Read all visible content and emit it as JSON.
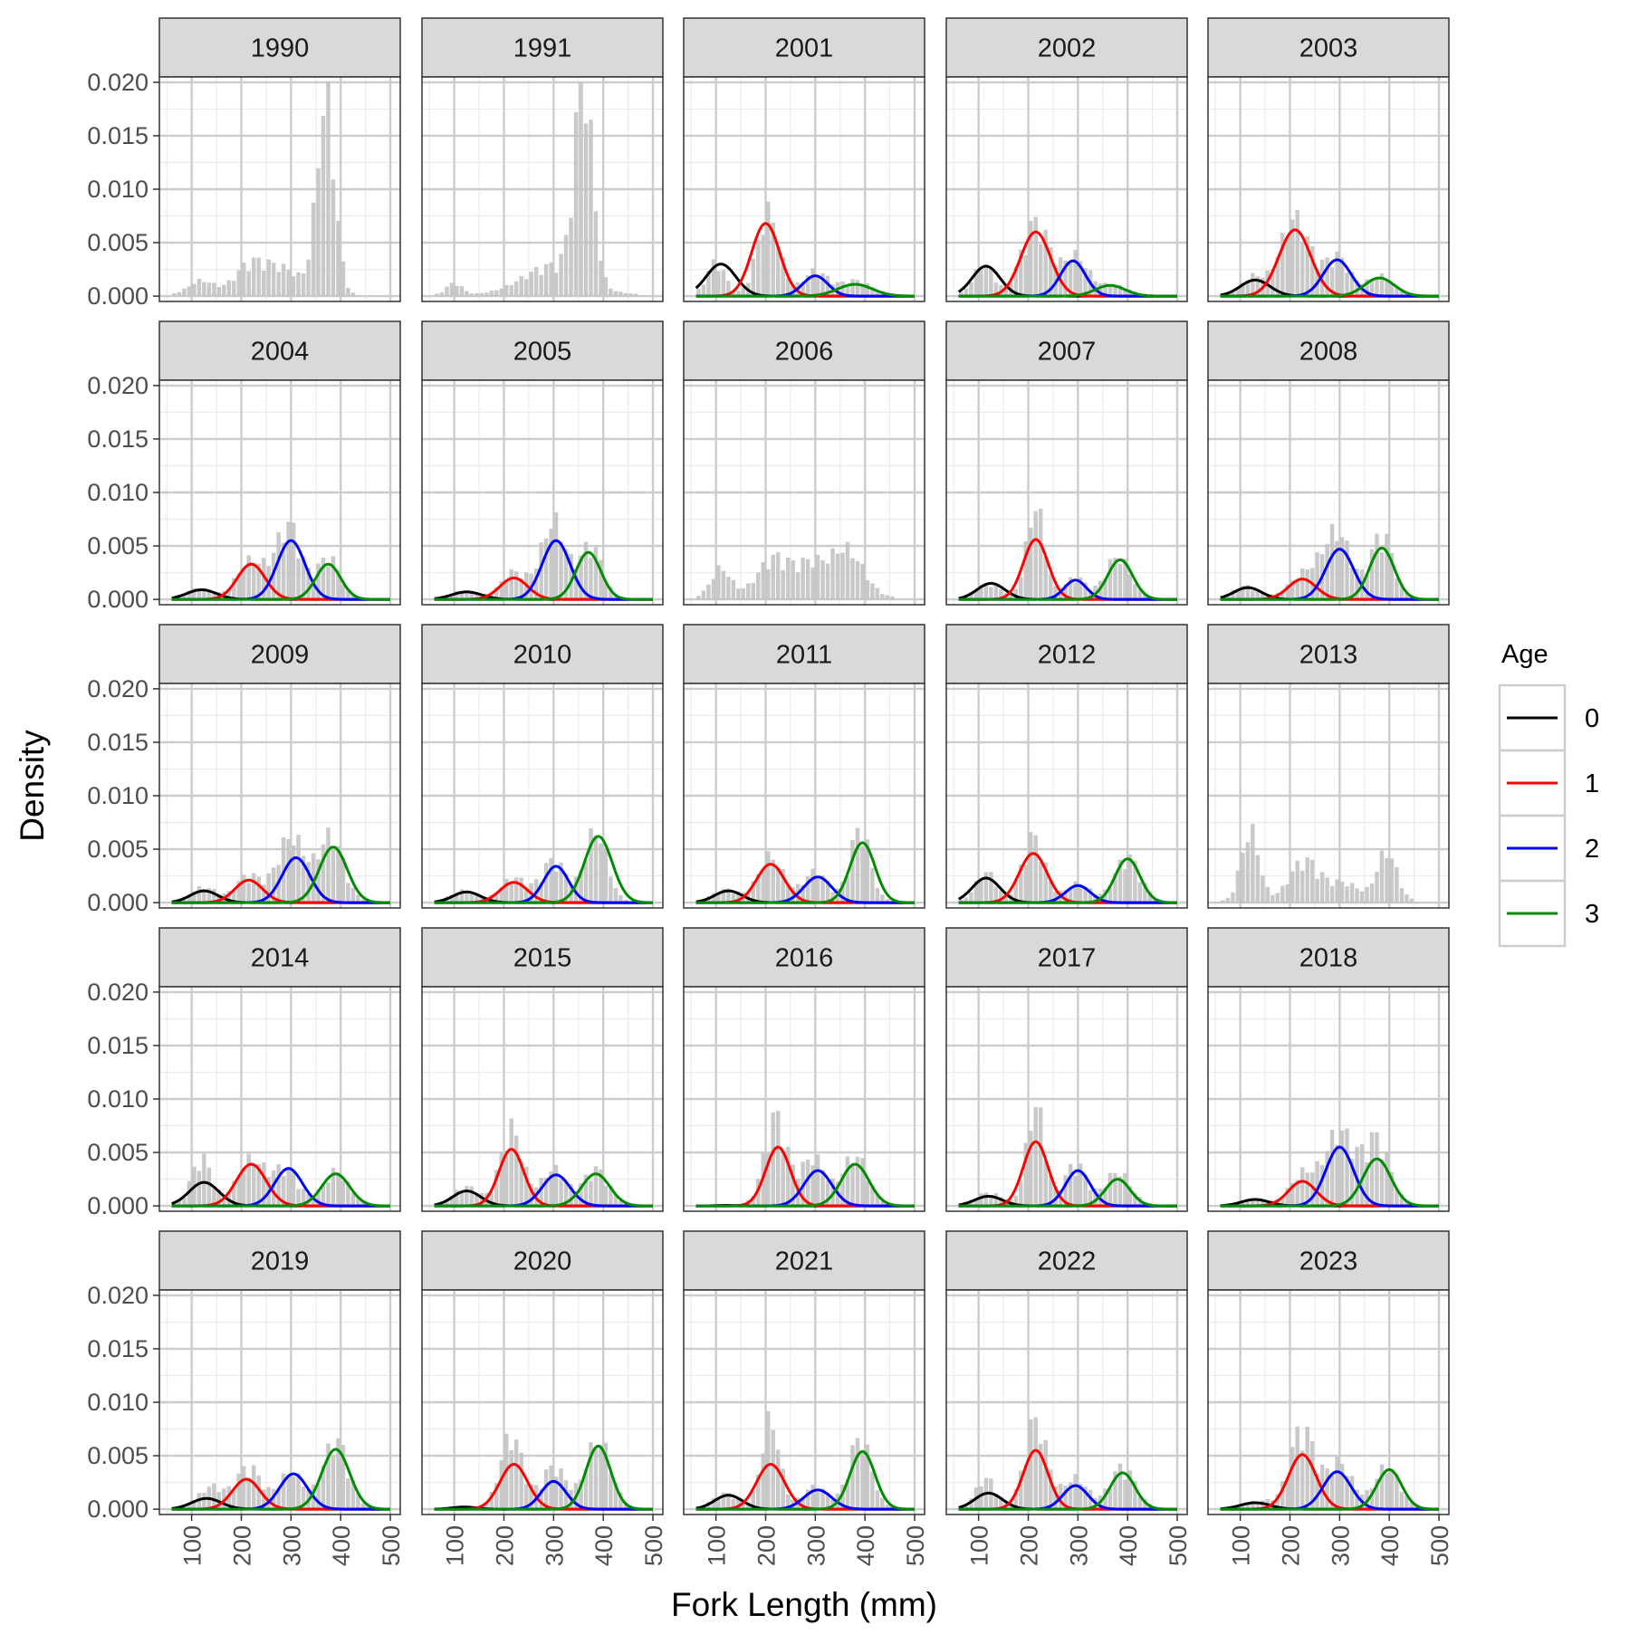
{
  "chart_data": {
    "type": "histogram-with-density-curves",
    "xlabel": "Fork Length (mm)",
    "ylabel": "Density",
    "x_ticks": [
      100,
      200,
      300,
      400,
      500
    ],
    "x_tick_labels": [
      "100",
      "200",
      "300",
      "400",
      "500"
    ],
    "y_ticks": [
      0,
      0.005,
      0.01,
      0.015,
      0.02
    ],
    "y_tick_labels": [
      "0.000",
      "0.005",
      "0.010",
      "0.015",
      "0.020"
    ],
    "xlim": [
      35,
      520
    ],
    "ylim": [
      -0.0005,
      0.0205
    ],
    "legend": {
      "title": "Age",
      "position": "right",
      "entries": [
        {
          "label": "0",
          "color": "#000000"
        },
        {
          "label": "1",
          "color": "#ff0000"
        },
        {
          "label": "2",
          "color": "#0000ff"
        },
        {
          "label": "3",
          "color": "#008b00"
        }
      ]
    },
    "bar_color": "#bfbfbf",
    "facet_strip_color": "#d9d9d9",
    "panels": [
      {
        "label": "1990",
        "hist_peaks": [
          [
            370,
            0.0165,
            18
          ],
          [
            120,
            0.0012,
            25
          ],
          [
            215,
            0.0022,
            30
          ],
          [
            280,
            0.0022,
            40
          ]
        ],
        "curves": []
      },
      {
        "label": "1991",
        "hist_peaks": [
          [
            360,
            0.017,
            18
          ],
          [
            100,
            0.001,
            15
          ],
          [
            300,
            0.0025,
            60
          ]
        ],
        "curves": []
      },
      {
        "label": "2001",
        "hist_peaks": [
          [
            100,
            0.0028,
            18
          ],
          [
            205,
            0.007,
            22
          ],
          [
            300,
            0.002,
            25
          ],
          [
            380,
            0.0012,
            30
          ]
        ],
        "curves": [
          [
            0.003,
            110,
            30
          ],
          [
            0.0068,
            200,
            28
          ],
          [
            0.0019,
            300,
            25
          ],
          [
            0.0011,
            380,
            35
          ]
        ]
      },
      {
        "label": "2002",
        "hist_peaks": [
          [
            110,
            0.0025,
            20
          ],
          [
            215,
            0.0062,
            28
          ],
          [
            295,
            0.0032,
            25
          ],
          [
            370,
            0.0008,
            30
          ]
        ],
        "curves": [
          [
            0.0028,
            115,
            28
          ],
          [
            0.006,
            215,
            30
          ],
          [
            0.0033,
            290,
            25
          ],
          [
            0.001,
            365,
            30
          ]
        ]
      },
      {
        "label": "2003",
        "hist_peaks": [
          [
            125,
            0.0015,
            22
          ],
          [
            210,
            0.0065,
            30
          ],
          [
            295,
            0.0032,
            25
          ],
          [
            380,
            0.0016,
            25
          ]
        ],
        "curves": [
          [
            0.0015,
            130,
            30
          ],
          [
            0.0062,
            210,
            32
          ],
          [
            0.0034,
            295,
            28
          ],
          [
            0.0017,
            380,
            30
          ]
        ]
      },
      {
        "label": "2004",
        "hist_peaks": [
          [
            115,
            0.0008,
            25
          ],
          [
            220,
            0.0032,
            28
          ],
          [
            295,
            0.0062,
            25
          ],
          [
            375,
            0.0035,
            22
          ]
        ],
        "curves": [
          [
            0.0009,
            120,
            30
          ],
          [
            0.0033,
            220,
            28
          ],
          [
            0.0055,
            300,
            28
          ],
          [
            0.0033,
            375,
            25
          ]
        ]
      },
      {
        "label": "2005",
        "hist_peaks": [
          [
            120,
            0.0006,
            25
          ],
          [
            220,
            0.0022,
            25
          ],
          [
            300,
            0.0065,
            25
          ],
          [
            375,
            0.0045,
            22
          ]
        ],
        "curves": [
          [
            0.0007,
            125,
            30
          ],
          [
            0.002,
            220,
            28
          ],
          [
            0.0055,
            305,
            28
          ],
          [
            0.0044,
            370,
            25
          ]
        ]
      },
      {
        "label": "2006",
        "hist_peaks": [
          [
            110,
            0.0025,
            20
          ],
          [
            220,
            0.0035,
            35
          ],
          [
            290,
            0.0022,
            25
          ],
          [
            360,
            0.0042,
            35
          ]
        ],
        "curves": []
      },
      {
        "label": "2007",
        "hist_peaks": [
          [
            120,
            0.0012,
            25
          ],
          [
            215,
            0.0078,
            18
          ],
          [
            295,
            0.0018,
            20
          ],
          [
            380,
            0.0035,
            25
          ]
        ],
        "curves": [
          [
            0.0015,
            125,
            28
          ],
          [
            0.0056,
            215,
            25
          ],
          [
            0.0018,
            295,
            22
          ],
          [
            0.0037,
            385,
            25
          ]
        ]
      },
      {
        "label": "2008",
        "hist_peaks": [
          [
            110,
            0.001,
            25
          ],
          [
            230,
            0.002,
            30
          ],
          [
            295,
            0.0055,
            28
          ],
          [
            385,
            0.0055,
            22
          ]
        ],
        "curves": [
          [
            0.0011,
            115,
            28
          ],
          [
            0.0019,
            225,
            28
          ],
          [
            0.0047,
            300,
            28
          ],
          [
            0.0048,
            385,
            25
          ]
        ]
      },
      {
        "label": "2009",
        "hist_peaks": [
          [
            125,
            0.0012,
            25
          ],
          [
            215,
            0.0022,
            25
          ],
          [
            300,
            0.0055,
            28
          ],
          [
            380,
            0.0055,
            25
          ]
        ],
        "curves": [
          [
            0.0011,
            125,
            28
          ],
          [
            0.0021,
            215,
            28
          ],
          [
            0.0042,
            310,
            28
          ],
          [
            0.0052,
            385,
            28
          ]
        ]
      },
      {
        "label": "2010",
        "hist_peaks": [
          [
            120,
            0.0009,
            25
          ],
          [
            220,
            0.002,
            25
          ],
          [
            300,
            0.0035,
            25
          ],
          [
            385,
            0.006,
            22
          ]
        ],
        "curves": [
          [
            0.001,
            125,
            28
          ],
          [
            0.0019,
            220,
            28
          ],
          [
            0.0034,
            305,
            25
          ],
          [
            0.0062,
            390,
            28
          ]
        ]
      },
      {
        "label": "2011",
        "hist_peaks": [
          [
            120,
            0.001,
            25
          ],
          [
            210,
            0.0038,
            25
          ],
          [
            300,
            0.0025,
            25
          ],
          [
            390,
            0.0062,
            20
          ]
        ],
        "curves": [
          [
            0.0011,
            125,
            28
          ],
          [
            0.0036,
            210,
            28
          ],
          [
            0.0024,
            305,
            28
          ],
          [
            0.0056,
            395,
            25
          ]
        ]
      },
      {
        "label": "2012",
        "hist_peaks": [
          [
            115,
            0.0025,
            20
          ],
          [
            210,
            0.0055,
            22
          ],
          [
            300,
            0.0015,
            25
          ],
          [
            400,
            0.0038,
            25
          ]
        ],
        "curves": [
          [
            0.0023,
            115,
            28
          ],
          [
            0.0046,
            210,
            28
          ],
          [
            0.0016,
            300,
            25
          ],
          [
            0.0041,
            400,
            25
          ]
        ]
      },
      {
        "label": "2013",
        "hist_peaks": [
          [
            120,
            0.006,
            18
          ],
          [
            230,
            0.0035,
            30
          ],
          [
            310,
            0.0015,
            30
          ],
          [
            395,
            0.0042,
            20
          ]
        ],
        "curves": []
      },
      {
        "label": "2014",
        "hist_peaks": [
          [
            120,
            0.004,
            20
          ],
          [
            220,
            0.0038,
            28
          ],
          [
            290,
            0.003,
            25
          ],
          [
            390,
            0.0028,
            25
          ]
        ],
        "curves": [
          [
            0.0022,
            125,
            30
          ],
          [
            0.0039,
            220,
            30
          ],
          [
            0.0035,
            295,
            28
          ],
          [
            0.003,
            390,
            28
          ]
        ]
      },
      {
        "label": "2015",
        "hist_peaks": [
          [
            125,
            0.0015,
            25
          ],
          [
            215,
            0.0065,
            22
          ],
          [
            300,
            0.003,
            25
          ],
          [
            385,
            0.003,
            25
          ]
        ],
        "curves": [
          [
            0.0014,
            125,
            28
          ],
          [
            0.0053,
            215,
            25
          ],
          [
            0.0029,
            305,
            28
          ],
          [
            0.003,
            385,
            28
          ]
        ]
      },
      {
        "label": "2016",
        "hist_peaks": [
          [
            220,
            0.0075,
            22
          ],
          [
            295,
            0.004,
            25
          ],
          [
            380,
            0.0042,
            25
          ]
        ],
        "curves": [
          [
            5e-05,
            120,
            20
          ],
          [
            0.0055,
            225,
            25
          ],
          [
            0.0033,
            305,
            28
          ],
          [
            0.0039,
            380,
            28
          ]
        ]
      },
      {
        "label": "2017",
        "hist_peaks": [
          [
            120,
            0.001,
            25
          ],
          [
            215,
            0.0085,
            18
          ],
          [
            295,
            0.0035,
            22
          ],
          [
            380,
            0.0028,
            25
          ]
        ],
        "curves": [
          [
            0.0009,
            120,
            28
          ],
          [
            0.006,
            215,
            25
          ],
          [
            0.0033,
            300,
            25
          ],
          [
            0.0025,
            380,
            25
          ]
        ]
      },
      {
        "label": "2018",
        "hist_peaks": [
          [
            130,
            0.0005,
            25
          ],
          [
            225,
            0.0025,
            25
          ],
          [
            300,
            0.0062,
            30
          ],
          [
            375,
            0.0055,
            25
          ]
        ],
        "curves": [
          [
            0.0006,
            130,
            28
          ],
          [
            0.0023,
            225,
            28
          ],
          [
            0.0055,
            300,
            28
          ],
          [
            0.0044,
            375,
            28
          ]
        ]
      },
      {
        "label": "2019",
        "hist_peaks": [
          [
            140,
            0.0018,
            25
          ],
          [
            215,
            0.0035,
            25
          ],
          [
            300,
            0.003,
            25
          ],
          [
            390,
            0.0058,
            25
          ]
        ],
        "curves": [
          [
            0.001,
            130,
            30
          ],
          [
            0.0028,
            210,
            28
          ],
          [
            0.0033,
            305,
            28
          ],
          [
            0.0056,
            390,
            28
          ]
        ]
      },
      {
        "label": "2020",
        "hist_peaks": [
          [
            215,
            0.0062,
            22
          ],
          [
            300,
            0.0035,
            25
          ],
          [
            390,
            0.0058,
            25
          ]
        ],
        "curves": [
          [
            0.0002,
            120,
            25
          ],
          [
            0.0042,
            220,
            28
          ],
          [
            0.0026,
            300,
            25
          ],
          [
            0.0059,
            390,
            25
          ]
        ]
      },
      {
        "label": "2021",
        "hist_peaks": [
          [
            120,
            0.0012,
            25
          ],
          [
            210,
            0.0075,
            18
          ],
          [
            300,
            0.0018,
            25
          ],
          [
            390,
            0.006,
            22
          ]
        ],
        "curves": [
          [
            0.0013,
            125,
            28
          ],
          [
            0.0042,
            210,
            28
          ],
          [
            0.0018,
            305,
            28
          ],
          [
            0.0054,
            395,
            25
          ]
        ]
      },
      {
        "label": "2022",
        "hist_peaks": [
          [
            115,
            0.0025,
            20
          ],
          [
            215,
            0.0075,
            22
          ],
          [
            295,
            0.0025,
            25
          ],
          [
            390,
            0.0035,
            25
          ]
        ],
        "curves": [
          [
            0.0015,
            120,
            28
          ],
          [
            0.0055,
            215,
            25
          ],
          [
            0.0022,
            295,
            25
          ],
          [
            0.0034,
            390,
            25
          ]
        ]
      },
      {
        "label": "2023",
        "hist_peaks": [
          [
            140,
            0.0006,
            25
          ],
          [
            225,
            0.0068,
            25
          ],
          [
            300,
            0.0038,
            25
          ],
          [
            395,
            0.0035,
            25
          ]
        ],
        "curves": [
          [
            0.0006,
            130,
            30
          ],
          [
            0.0051,
            225,
            28
          ],
          [
            0.0035,
            295,
            28
          ],
          [
            0.0037,
            400,
            25
          ]
        ]
      }
    ]
  }
}
